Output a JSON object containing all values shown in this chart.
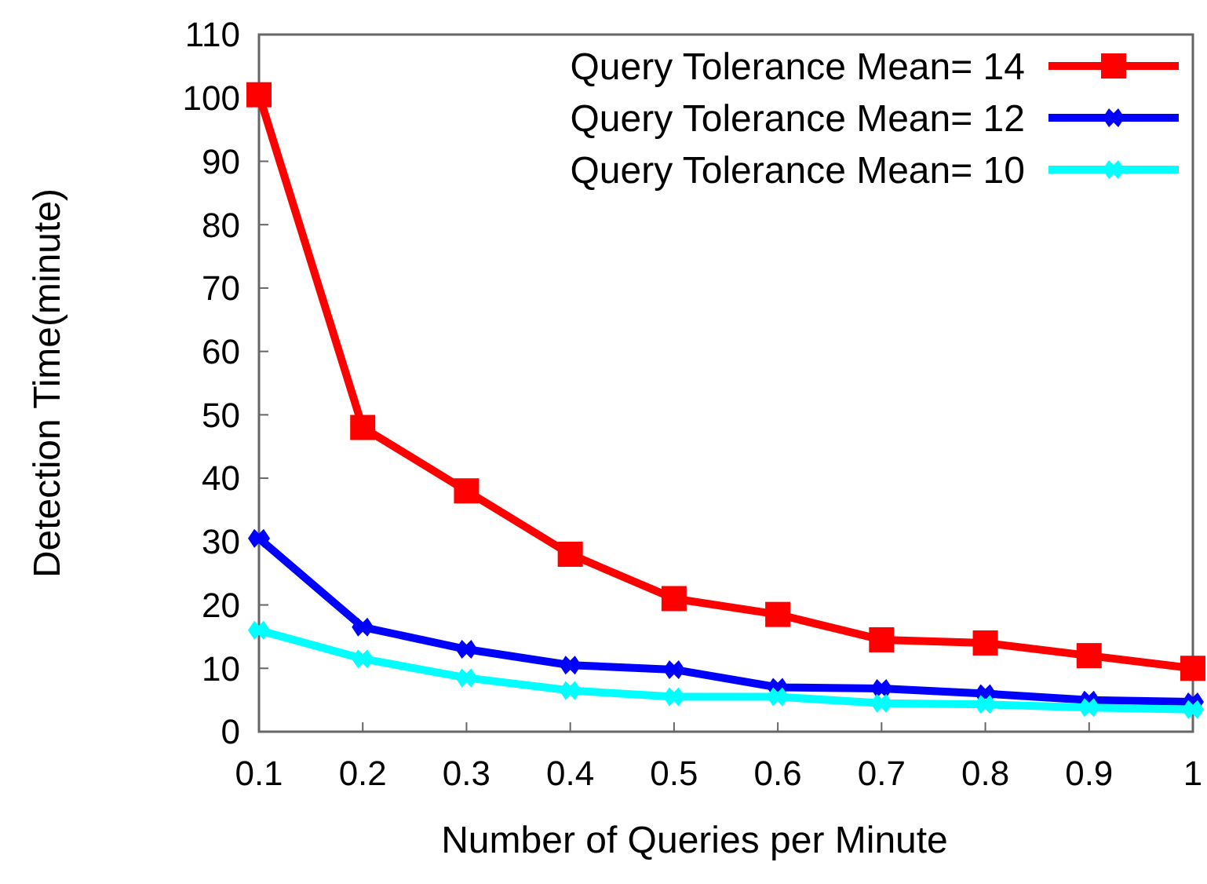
{
  "chart_data": {
    "type": "line",
    "xlabel": "Number of Queries per Minute",
    "ylabel": "Detection Time(minute)",
    "x": [
      0.1,
      0.2,
      0.3,
      0.4,
      0.5,
      0.6,
      0.7,
      0.8,
      0.9,
      1
    ],
    "xlim": [
      0.1,
      1
    ],
    "xticks": [
      0.1,
      0.2,
      0.3,
      0.4,
      0.5,
      0.6,
      0.7,
      0.8,
      0.9,
      1
    ],
    "ylim": [
      0,
      110
    ],
    "yticks": [
      0,
      10,
      20,
      30,
      40,
      50,
      60,
      70,
      80,
      90,
      100,
      110
    ],
    "grid": false,
    "legend": "top right",
    "line_style": "solid",
    "series": [
      {
        "name": "Query Tolerance Mean= 14",
        "color": "#ff0000",
        "marker": "square",
        "values": [
          100.5,
          48,
          38,
          28,
          21,
          18.5,
          14.5,
          14,
          12,
          10
        ]
      },
      {
        "name": "Query Tolerance Mean= 12",
        "color": "#0000ff",
        "marker": "diamond",
        "values": [
          30.5,
          16.5,
          13,
          10.5,
          9.8,
          7,
          6.8,
          6,
          5,
          4.7
        ]
      },
      {
        "name": "Query Tolerance Mean= 10",
        "color": "#00ffff",
        "marker": "diamond",
        "values": [
          16,
          11.5,
          8.5,
          6.5,
          5.5,
          5.5,
          4.5,
          4.3,
          3.8,
          3.5
        ]
      }
    ]
  }
}
